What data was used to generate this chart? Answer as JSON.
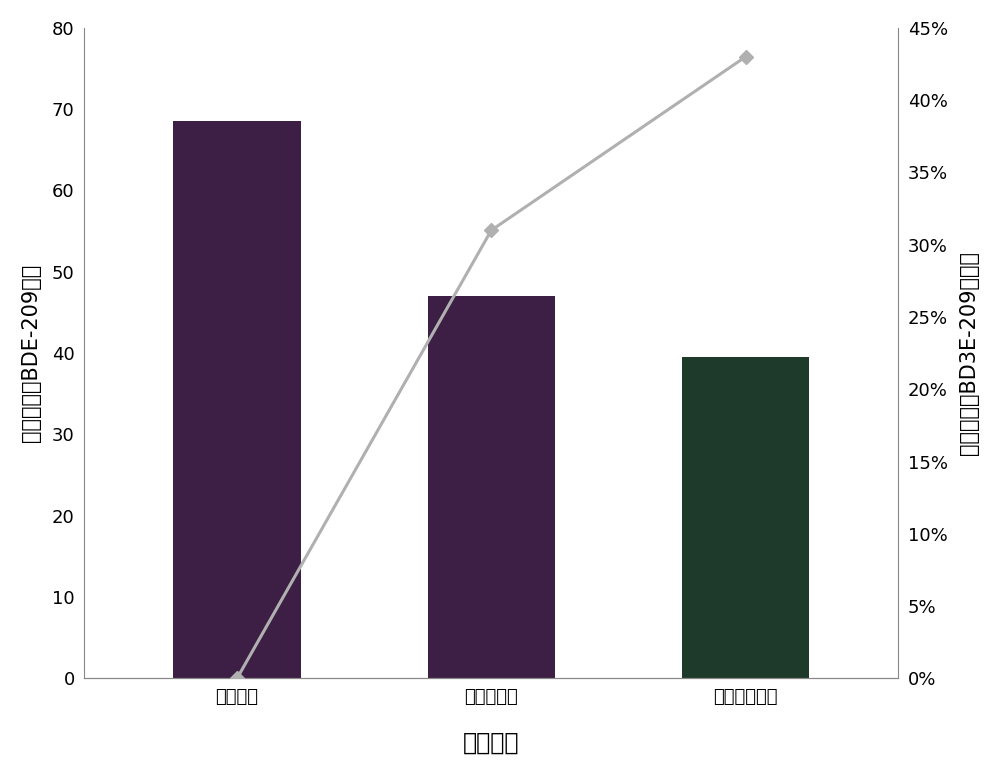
{
  "categories": [
    "原始浓度",
    "水稻处理后",
    "黑麦草处理后"
  ],
  "bar_values": [
    68.5,
    47.0,
    39.5
  ],
  "line_values": [
    0.0,
    0.31,
    0.43
  ],
  "bar_color_1": "#3d1f45",
  "bar_color_2": "#3d1f45",
  "bar_color_3": "#1e3a2a",
  "line_color": "#b0b0b0",
  "marker_color": "#b0b0b0",
  "marker_style": "D",
  "marker_size": 7,
  "left_ylabel": "田间土壤中BDE-209含量",
  "right_ylabel": "田间土壤中BD3E-209去除率",
  "xlabel": "修复周期",
  "ylim_left": [
    0,
    80
  ],
  "ylim_right": [
    0,
    0.45
  ],
  "yticks_left": [
    0,
    10,
    20,
    30,
    40,
    50,
    60,
    70,
    80
  ],
  "yticks_right": [
    0.0,
    0.05,
    0.1,
    0.15,
    0.2,
    0.25,
    0.3,
    0.35,
    0.4,
    0.45
  ],
  "ytick_labels_right": [
    "0%",
    "5%",
    "10%",
    "15%",
    "20%",
    "25%",
    "30%",
    "35%",
    "40%",
    "45%"
  ],
  "background_color": "#ffffff",
  "axis_label_fontsize": 15,
  "tick_fontsize": 13,
  "xlabel_fontsize": 17
}
